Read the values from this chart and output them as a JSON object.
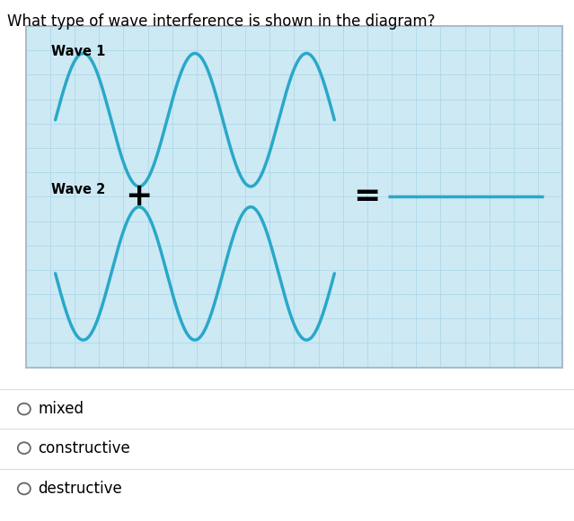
{
  "question_text": "What type of wave interference is shown in the diagram?",
  "wave1_label": "Wave 1",
  "wave2_label": "Wave 2",
  "wave_color": "#29a8c8",
  "wave_linewidth": 2.5,
  "box_bg_color": "#cde9f4",
  "box_edge_color": "#aabbcc",
  "grid_color": "#a8d4e6",
  "result_line_color": "#29a8c8",
  "result_linewidth": 2.5,
  "plus_symbol": "+",
  "equals_symbol": "=",
  "choices": [
    "mixed",
    "constructive",
    "destructive"
  ],
  "question_fontsize": 12,
  "label_fontsize": 10.5,
  "choice_fontsize": 12,
  "fig_width": 6.39,
  "fig_height": 5.81,
  "n_grid_vert": 22,
  "n_grid_horiz": 14
}
